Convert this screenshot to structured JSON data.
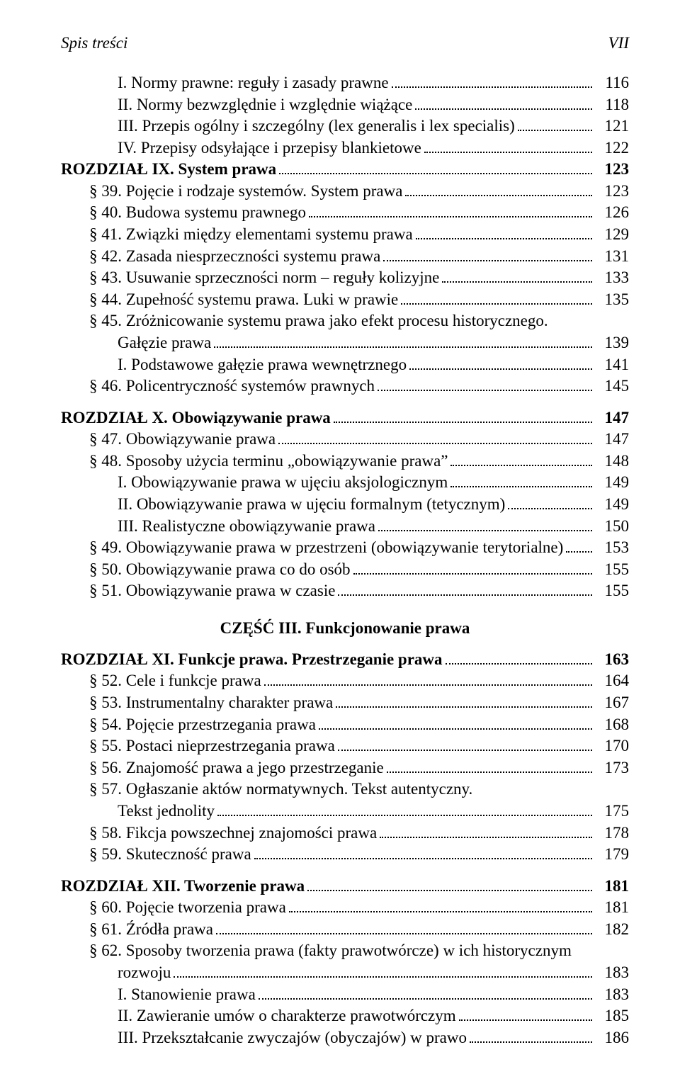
{
  "header": {
    "left": "Spis treści",
    "right": "VII"
  },
  "part_title": "CZĘŚĆ III. Funkcjonowanie prawa",
  "lines": [
    {
      "indent": 2,
      "label": "I. Normy prawne: reguły i zasady prawne",
      "page": "116"
    },
    {
      "indent": 2,
      "label": "II. Normy bezwzględnie i względnie wiążące",
      "page": "118"
    },
    {
      "indent": 2,
      "label": "III. Przepis ogólny i szczególny (lex generalis i lex specialis)",
      "page": "121"
    },
    {
      "indent": 2,
      "label": "IV. Przepisy odsyłające i przepisy blankietowe",
      "page": "122"
    },
    {
      "indent": 0,
      "bold": true,
      "label": "ROZDZIAŁ IX. System prawa",
      "page": "123"
    },
    {
      "indent": 1,
      "label": "§ 39. Pojęcie i rodzaje systemów. System prawa",
      "page": "123"
    },
    {
      "indent": 1,
      "label": "§ 40. Budowa systemu prawnego",
      "page": "126"
    },
    {
      "indent": 1,
      "label": "§ 41. Związki między elementami systemu prawa",
      "page": "129"
    },
    {
      "indent": 1,
      "label": "§ 42. Zasada niesprzeczności systemu prawa",
      "page": "131"
    },
    {
      "indent": 1,
      "label": "§ 43. Usuwanie sprzeczności norm – reguły kolizyjne",
      "page": "133"
    },
    {
      "indent": 1,
      "label": "§ 44. Zupełność systemu prawa. Luki w prawie",
      "page": "135"
    },
    {
      "indent": 1,
      "label_a": "§ 45. Zróżnicowanie systemu prawa jako efekt procesu historycznego.",
      "label_b": "Gałęzie prawa",
      "page": "139",
      "wrap_indent": 2
    },
    {
      "indent": 2,
      "label": "I. Podstawowe gałęzie prawa wewnętrznego",
      "page": "141"
    },
    {
      "indent": 1,
      "label": "§ 46. Policentryczność systemów prawnych",
      "page": "145"
    },
    {
      "gap": true
    },
    {
      "indent": 0,
      "bold": true,
      "label": "ROZDZIAŁ X. Obowiązywanie prawa",
      "page": "147"
    },
    {
      "indent": 1,
      "label": "§ 47. Obowiązywanie prawa",
      "page": "147"
    },
    {
      "indent": 1,
      "label": "§ 48. Sposoby użycia terminu „obowiązywanie prawa”",
      "page": "148"
    },
    {
      "indent": 2,
      "label": "I. Obowiązywanie prawa w ujęciu aksjologicznym",
      "page": "149"
    },
    {
      "indent": 2,
      "label": "II. Obowiązywanie prawa w ujęciu formalnym (tetycznym)",
      "page": "149"
    },
    {
      "indent": 2,
      "label": "III. Realistyczne obowiązywanie prawa",
      "page": "150"
    },
    {
      "indent": 1,
      "label": "§ 49. Obowiązywanie prawa w przestrzeni (obowiązywanie terytorialne)",
      "page": "153"
    },
    {
      "indent": 1,
      "label": "§ 50. Obowiązywanie prawa co do osób",
      "page": "155"
    },
    {
      "indent": 1,
      "label": "§ 51. Obowiązywanie prawa w czasie",
      "page": "155"
    },
    {
      "part": true
    },
    {
      "indent": 0,
      "bold": true,
      "label": "ROZDZIAŁ XI. Funkcje prawa. Przestrzeganie prawa",
      "page": "163"
    },
    {
      "indent": 1,
      "label": "§ 52. Cele i funkcje prawa",
      "page": "164"
    },
    {
      "indent": 1,
      "label": "§ 53. Instrumentalny charakter prawa",
      "page": "167"
    },
    {
      "indent": 1,
      "label": "§ 54. Pojęcie przestrzegania prawa",
      "page": "168"
    },
    {
      "indent": 1,
      "label": "§ 55. Postaci nieprzestrzegania prawa",
      "page": "170"
    },
    {
      "indent": 1,
      "label": "§ 56. Znajomość prawa a jego przestrzeganie",
      "page": "173"
    },
    {
      "indent": 1,
      "label_a": "§ 57. Ogłaszanie aktów normatywnych. Tekst autentyczny.",
      "label_b": "Tekst jednolity",
      "page": "175",
      "wrap_indent": 2
    },
    {
      "indent": 1,
      "label": "§ 58. Fikcja powszechnej znajomości prawa",
      "page": "178"
    },
    {
      "indent": 1,
      "label": "§ 59. Skuteczność prawa",
      "page": "179"
    },
    {
      "gap": true
    },
    {
      "indent": 0,
      "bold": true,
      "label": "ROZDZIAŁ XII. Tworzenie prawa",
      "page": "181"
    },
    {
      "indent": 1,
      "label": "§ 60. Pojęcie tworzenia prawa",
      "page": "181"
    },
    {
      "indent": 1,
      "label": "§ 61. Źródła prawa",
      "page": "182"
    },
    {
      "indent": 1,
      "label_a": "§ 62. Sposoby tworzenia prawa (fakty prawotwórcze) w ich historycznym",
      "label_b": "rozwoju",
      "page": "183",
      "wrap_indent": 2
    },
    {
      "indent": 2,
      "label": "I. Stanowienie prawa",
      "page": "183"
    },
    {
      "indent": 2,
      "label": "II. Zawieranie umów o charakterze prawotwórczym",
      "page": "185"
    },
    {
      "indent": 2,
      "label": "III. Przekształcanie zwyczajów (obyczajów) w prawo",
      "page": "186"
    }
  ]
}
